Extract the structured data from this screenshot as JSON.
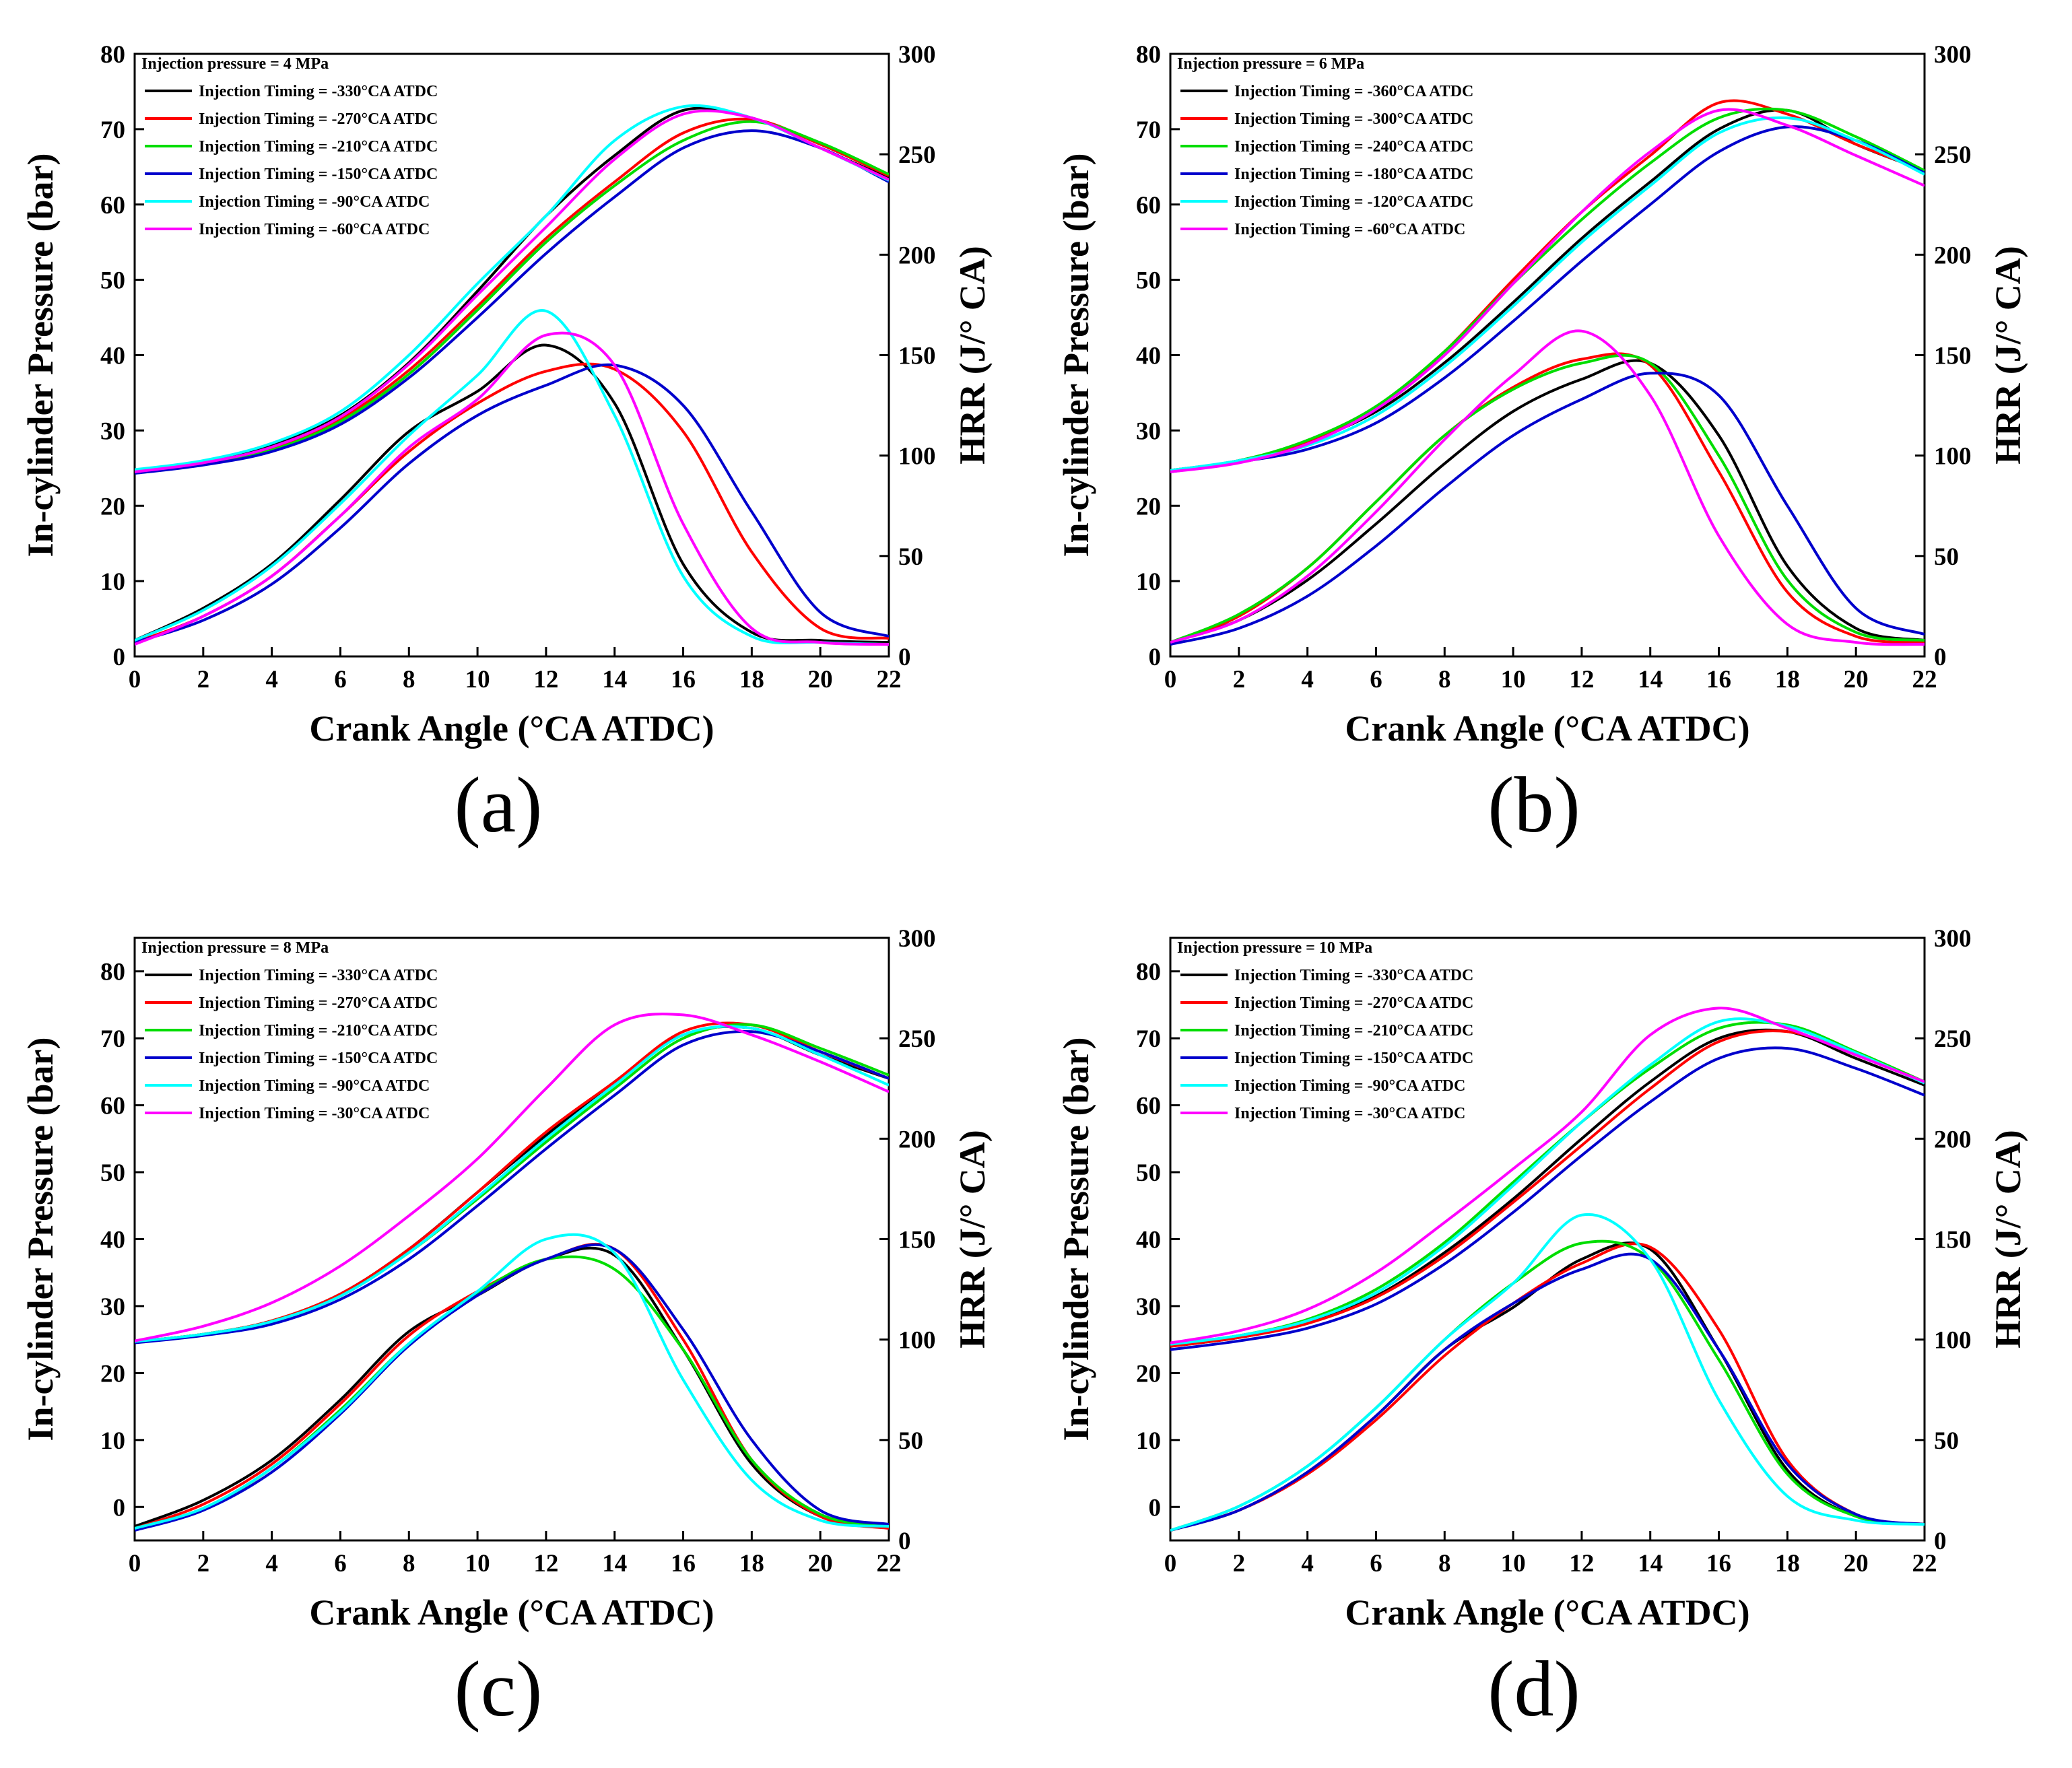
{
  "chart_data": [
    {
      "type": "line",
      "panel_label": "(a)",
      "title": "Injection pressure = 4 MPa",
      "xlabel": "Crank Angle (°CA ATDC)",
      "ylabel": "In-cylinder Pressure (bar)",
      "y2label": "HRR (J/° CA)",
      "xlim": [
        0,
        22
      ],
      "ylim": [
        0,
        80
      ],
      "y2lim": [
        0,
        300
      ],
      "xticks": [
        "0",
        "2",
        "4",
        "6",
        "8",
        "10",
        "12",
        "14",
        "16",
        "18",
        "20",
        "22"
      ],
      "yticks": [
        "0",
        "10",
        "20",
        "30",
        "40",
        "50",
        "60",
        "70",
        "80"
      ],
      "y2ticks": [
        "0",
        "50",
        "100",
        "150",
        "200",
        "250",
        "300"
      ],
      "x": [
        0,
        2,
        4,
        6,
        8,
        10,
        12,
        14,
        16,
        18,
        20,
        22
      ],
      "series": [
        {
          "name": "Injection Timing = -330°CA ATDC",
          "color": "#000000",
          "pressure": [
            24.5,
            25.8,
            28,
            32,
            39,
            48.5,
            58.5,
            66.5,
            72.5,
            71.5,
            67.5,
            63.5
          ],
          "hrr": [
            8,
            24,
            46,
            78,
            112,
            132,
            155,
            126,
            46,
            12,
            8,
            7
          ]
        },
        {
          "name": "Injection Timing = -270°CA ATDC",
          "color": "#ff0000",
          "pressure": [
            24.4,
            25.6,
            27.6,
            31.5,
            38,
            46.5,
            55.5,
            63,
            69.5,
            71.3,
            68,
            63.8
          ],
          "hrr": [
            7,
            20,
            40,
            70,
            102,
            126,
            142,
            143,
            112,
            52,
            14,
            9
          ]
        },
        {
          "name": "Injection Timing = -210°CA ATDC",
          "color": "#00dd00",
          "pressure": [
            24.4,
            25.5,
            27.4,
            31.2,
            37.5,
            46,
            55,
            62.5,
            68.5,
            71,
            68.2,
            64
          ]
        },
        {
          "name": "Injection Timing = -150°CA ATDC",
          "color": "#0000cc",
          "pressure": [
            24.3,
            25.4,
            27.2,
            30.8,
            37,
            45,
            53.5,
            61,
            67.5,
            69.8,
            67.5,
            63
          ],
          "hrr": [
            7,
            18,
            36,
            64,
            96,
            120,
            135,
            145,
            125,
            72,
            22,
            10
          ]
        },
        {
          "name": "Injection Timing = -90°CA ATDC",
          "color": "#00ffff",
          "pressure": [
            24.8,
            26,
            28.3,
            32.5,
            40,
            49.5,
            58.5,
            68.5,
            73,
            71.5,
            67.5,
            63.2
          ],
          "hrr": [
            8,
            23,
            45,
            76,
            110,
            140,
            172,
            120,
            40,
            10,
            7,
            6
          ]
        },
        {
          "name": "Injection Timing = -60°CA ATDC",
          "color": "#ff00ff",
          "pressure": [
            24.5,
            25.7,
            27.8,
            31.8,
            38.8,
            48,
            57,
            66,
            72,
            71.5,
            67.5,
            63.3
          ],
          "hrr": [
            6,
            20,
            40,
            70,
            104,
            128,
            160,
            145,
            66,
            14,
            7,
            6
          ]
        }
      ]
    },
    {
      "type": "line",
      "panel_label": "(b)",
      "title": "Injection pressure = 6 MPa",
      "xlabel": "Crank Angle (°CA ATDC)",
      "ylabel": "In-cylinder Pressure (bar)",
      "y2label": "HRR (J/° CA)",
      "xlim": [
        0,
        22
      ],
      "ylim": [
        0,
        80
      ],
      "y2lim": [
        0,
        300
      ],
      "xticks": [
        "0",
        "2",
        "4",
        "6",
        "8",
        "10",
        "12",
        "14",
        "16",
        "18",
        "20",
        "22"
      ],
      "yticks": [
        "0",
        "10",
        "20",
        "30",
        "40",
        "50",
        "60",
        "70",
        "80"
      ],
      "y2ticks": [
        "0",
        "50",
        "100",
        "150",
        "200",
        "250",
        "300"
      ],
      "x": [
        0,
        2,
        4,
        6,
        8,
        10,
        12,
        14,
        16,
        18,
        20,
        22
      ],
      "series": [
        {
          "name": "Injection Timing = -360°CA ATDC",
          "color": "#000000",
          "pressure": [
            24.7,
            26,
            28.5,
            32.5,
            39,
            47,
            55.5,
            63,
            70,
            72.5,
            68,
            64.5
          ],
          "hrr": [
            7,
            18,
            38,
            66,
            96,
            122,
            138,
            146,
            110,
            45,
            14,
            8
          ]
        },
        {
          "name": "Injection Timing = -300°CA ATDC",
          "color": "#ff0000",
          "pressure": [
            24.7,
            26,
            28.5,
            33,
            40.5,
            50,
            59,
            66.5,
            73.5,
            72,
            68,
            64.5
          ],
          "hrr": [
            7,
            20,
            44,
            77,
            110,
            134,
            148,
            145,
            92,
            32,
            10,
            7
          ]
        },
        {
          "name": "Injection Timing = -240°CA ATDC",
          "color": "#00dd00",
          "pressure": [
            24.7,
            26,
            28.7,
            33.2,
            40.5,
            49.5,
            58,
            65.5,
            71.5,
            72.5,
            69,
            64.5
          ],
          "hrr": [
            7,
            21,
            44,
            77,
            110,
            133,
            146,
            146,
            100,
            38,
            12,
            8
          ]
        },
        {
          "name": "Injection Timing = -180°CA ATDC",
          "color": "#0000cc",
          "pressure": [
            24.5,
            25.8,
            27.5,
            31,
            37,
            44.5,
            52.5,
            60,
            67,
            70.3,
            68.5,
            64.2
          ],
          "hrr": [
            6,
            14,
            30,
            55,
            84,
            110,
            128,
            141,
            130,
            75,
            24,
            11
          ]
        },
        {
          "name": "Injection Timing = -120°CA ATDC",
          "color": "#00ffff",
          "pressure": [
            24.7,
            26,
            28,
            32,
            38.5,
            46.5,
            55,
            62.5,
            69.5,
            71.5,
            68.5,
            64
          ]
        },
        {
          "name": "Injection Timing = -60°CA ATDC",
          "color": "#ff00ff",
          "pressure": [
            24.5,
            25.7,
            28.2,
            32.8,
            40,
            49.5,
            59,
            67,
            72.5,
            70.5,
            66.5,
            62.5
          ],
          "hrr": [
            7,
            18,
            40,
            72,
            108,
            140,
            162,
            130,
            60,
            16,
            7,
            6
          ]
        }
      ]
    },
    {
      "type": "line",
      "panel_label": "(c)",
      "title": "Injection pressure = 8 MPa",
      "xlabel": "Crank Angle (°CA ATDC)",
      "ylabel": "In-cylinder Pressure (bar)",
      "y2label": "HRR (J/° CA)",
      "xlim": [
        0,
        22
      ],
      "ylim": [
        -5,
        85
      ],
      "y2lim": [
        0,
        300
      ],
      "xticks": [
        "0",
        "2",
        "4",
        "6",
        "8",
        "10",
        "12",
        "14",
        "16",
        "18",
        "20",
        "22"
      ],
      "yticks": [
        "0",
        "10",
        "20",
        "30",
        "40",
        "50",
        "60",
        "70",
        "80"
      ],
      "y2ticks": [
        "0",
        "50",
        "100",
        "150",
        "200",
        "250",
        "300"
      ],
      "x": [
        0,
        2,
        4,
        6,
        8,
        10,
        12,
        14,
        16,
        18,
        20,
        22
      ],
      "series": [
        {
          "name": "Injection Timing = -330°CA ATDC",
          "color": "#000000",
          "pressure": [
            24.7,
            25.8,
            27.8,
            31.8,
            38.5,
            47,
            55.5,
            63.5,
            70.5,
            71.5,
            67.5,
            64
          ],
          "hrr": [
            7,
            20,
            40,
            70,
            104,
            122,
            140,
            142,
            95,
            38,
            12,
            7
          ]
        },
        {
          "name": "Injection Timing = -270°CA ATDC",
          "color": "#ff0000",
          "pressure": [
            24.7,
            25.8,
            27.8,
            31.8,
            38.5,
            47,
            56,
            63.5,
            71,
            72,
            68,
            64
          ],
          "hrr": [
            6,
            18,
            38,
            68,
            102,
            124,
            140,
            145,
            100,
            40,
            12,
            6
          ]
        },
        {
          "name": "Injection Timing = -210°CA ATDC",
          "color": "#00dd00",
          "pressure": [
            24.7,
            25.8,
            27.7,
            31.5,
            38,
            46,
            54.5,
            62.5,
            70,
            72,
            68.5,
            64.5
          ],
          "hrr": [
            6,
            16,
            36,
            65,
            98,
            123,
            140,
            135,
            95,
            40,
            13,
            7
          ]
        },
        {
          "name": "Injection Timing = -150°CA ATDC",
          "color": "#0000cc",
          "pressure": [
            24.5,
            25.6,
            27.3,
            31,
            37,
            45,
            53.5,
            61.5,
            69,
            71,
            68,
            64
          ],
          "hrr": [
            5,
            15,
            34,
            63,
            97,
            122,
            140,
            145,
            105,
            50,
            15,
            8
          ]
        },
        {
          "name": "Injection Timing = -90°CA ATDC",
          "color": "#00ffff",
          "pressure": [
            24.7,
            25.8,
            27.7,
            31.5,
            38,
            46.3,
            55,
            63,
            70.5,
            71.5,
            67.5,
            63
          ],
          "hrr": [
            6,
            16,
            36,
            64,
            98,
            124,
            150,
            143,
            80,
            30,
            10,
            7
          ]
        },
        {
          "name": "Injection Timing = -30°CA ATDC",
          "color": "#ff00ff",
          "pressure": [
            24.8,
            27,
            30.5,
            36,
            43.5,
            52,
            62.5,
            72,
            73.5,
            70.5,
            66.5,
            62
          ]
        }
      ]
    },
    {
      "type": "line",
      "panel_label": "(d)",
      "title": "Injection pressure = 10 MPa",
      "xlabel": "Crank Angle (°CA ATDC)",
      "ylabel": "In-cylinder Pressure (bar)",
      "y2label": "HRR (J/° CA)",
      "xlim": [
        0,
        22
      ],
      "ylim": [
        -5,
        85
      ],
      "y2lim": [
        0,
        300
      ],
      "xticks": [
        "0",
        "2",
        "4",
        "6",
        "8",
        "10",
        "12",
        "14",
        "16",
        "18",
        "20",
        "22"
      ],
      "yticks": [
        "0",
        "10",
        "20",
        "30",
        "40",
        "50",
        "60",
        "70",
        "80"
      ],
      "y2ticks": [
        "0",
        "50",
        "100",
        "150",
        "200",
        "250",
        "300"
      ],
      "x": [
        0,
        2,
        4,
        6,
        8,
        10,
        12,
        14,
        16,
        18,
        20,
        22
      ],
      "series": [
        {
          "name": "Injection Timing = -330°CA ATDC",
          "color": "#000000",
          "pressure": [
            24,
            25.3,
            27.5,
            31.5,
            38,
            46,
            55,
            63.5,
            70,
            71,
            67,
            63
          ],
          "hrr": [
            5,
            15,
            34,
            62,
            95,
            116,
            140,
            145,
            95,
            35,
            12,
            8
          ]
        },
        {
          "name": "Injection Timing = -270°CA ATDC",
          "color": "#ff0000",
          "pressure": [
            24,
            25.3,
            27.4,
            31.3,
            37.5,
            45.5,
            54,
            62.5,
            69.5,
            71,
            67.5,
            63.5
          ],
          "hrr": [
            5,
            15,
            33,
            60,
            92,
            118,
            138,
            146,
            105,
            40,
            13,
            8
          ]
        },
        {
          "name": "Injection Timing = -210°CA ATDC",
          "color": "#00dd00",
          "pressure": [
            24.3,
            25.6,
            28,
            32.5,
            39.5,
            48.5,
            57.5,
            65.5,
            71.5,
            72,
            68,
            63.5
          ],
          "hrr": [
            5,
            17,
            37,
            66,
            100,
            128,
            148,
            140,
            90,
            33,
            12,
            8
          ]
        },
        {
          "name": "Injection Timing = -150°CA ATDC",
          "color": "#0000cc",
          "pressure": [
            23.5,
            24.8,
            26.7,
            30.3,
            36.3,
            44,
            52.5,
            60.5,
            67,
            68.5,
            65.5,
            61.5
          ],
          "hrr": [
            5,
            15,
            34,
            62,
            95,
            118,
            135,
            140,
            95,
            38,
            13,
            8
          ]
        },
        {
          "name": "Injection Timing = -90°CA ATDC",
          "color": "#00ffff",
          "pressure": [
            24.3,
            25.6,
            27.8,
            32,
            39,
            48,
            57.5,
            66,
            72.5,
            71.8,
            67.8,
            63.3
          ],
          "hrr": [
            5,
            17,
            37,
            66,
            100,
            128,
            162,
            140,
            70,
            22,
            10,
            8
          ]
        },
        {
          "name": "Injection Timing = -30°CA ATDC",
          "color": "#ff00ff",
          "pressure": [
            24.5,
            26.3,
            29.5,
            35,
            42.5,
            50.5,
            59,
            70.5,
            74.5,
            71.5,
            67.5,
            63.5
          ]
        }
      ]
    }
  ]
}
